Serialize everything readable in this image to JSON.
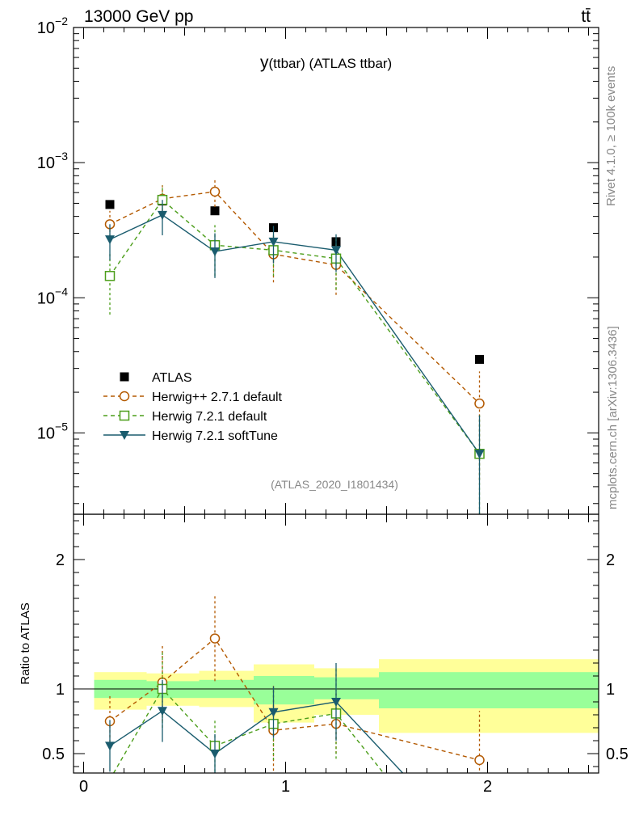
{
  "header": {
    "energy_label": "13000 GeV pp",
    "process_label": "tt̄"
  },
  "side": {
    "rivet_label": "Rivet 4.1.0, ≥ 100k events",
    "mcplots_label": "mcplots.cern.ch [arXiv:1306.3436]"
  },
  "chart_data": [
    {
      "type": "scatter",
      "title": "y(ttbar) (ATLAS ttbar)",
      "title_main": "y",
      "title_rest": "(ttbar) (ATLAS ttbar)",
      "analysis_tag": "(ATLAS_2020_I1801434)",
      "yscale": "log",
      "ylim": [
        2.5e-06,
        0.01
      ],
      "xlim": [
        -0.05,
        2.55
      ],
      "yticks": [
        {
          "value": 1e-05,
          "base": "10",
          "exp": "−5"
        },
        {
          "value": 0.0001,
          "base": "10",
          "exp": "−4"
        },
        {
          "value": 0.001,
          "base": "10",
          "exp": "−3"
        },
        {
          "value": 0.01,
          "base": "10",
          "exp": "−2"
        }
      ],
      "legend_position": "bottom-left",
      "series": [
        {
          "name": "ATLAS",
          "color": "#000000",
          "marker": "square-filled",
          "line": "none",
          "x": [
            0.13,
            0.39,
            0.65,
            0.94,
            1.25,
            1.96
          ],
          "y": [
            0.00049,
            0.00052,
            0.00044,
            0.00033,
            0.00026,
            3.5e-05
          ],
          "err": [
            0,
            0,
            0,
            0,
            0,
            0
          ]
        },
        {
          "name": "Herwig++ 2.7.1 default",
          "color": "#b35900",
          "marker": "circle-open",
          "line": "dashed",
          "x": [
            0.13,
            0.39,
            0.65,
            0.94,
            1.25,
            1.96
          ],
          "y": [
            0.00035,
            0.00054,
            0.00061,
            0.00021,
            0.000175,
            1.65e-05
          ],
          "err": [
            9e-05,
            0.00014,
            0.00014,
            8e-05,
            7e-05,
            1.2e-05
          ]
        },
        {
          "name": "Herwig 7.2.1 default",
          "color": "#4c9e1a",
          "marker": "square-open",
          "line": "dashed",
          "x": [
            0.13,
            0.39,
            0.65,
            0.94,
            1.25,
            1.96
          ],
          "y": [
            0.000145,
            0.00053,
            0.000245,
            0.000225,
            0.000195,
            7e-06
          ],
          "err": [
            7e-05,
            0.00015,
            0.0001,
            8e-05,
            8e-05,
            6.5e-06
          ]
        },
        {
          "name": "Herwig 7.2.1 softTune",
          "color": "#1a5c6e",
          "marker": "triangle-down-filled",
          "line": "solid",
          "x": [
            0.13,
            0.39,
            0.65,
            0.94,
            1.25,
            1.96
          ],
          "y": [
            0.00027,
            0.00041,
            0.00022,
            0.00026,
            0.000225,
            7e-06
          ],
          "err": [
            8e-05,
            0.00012,
            8e-05,
            8e-05,
            7e-05,
            6.5e-06
          ]
        }
      ]
    },
    {
      "type": "scatter",
      "ylabel": "Ratio to ATLAS",
      "xlabel": "",
      "ylim": [
        0.35,
        2.35
      ],
      "xlim": [
        -0.05,
        2.55
      ],
      "xticks": [
        0,
        1,
        2
      ],
      "yticks": [
        0.5,
        1,
        2
      ],
      "reference_line": 1,
      "bands": [
        {
          "x0": 0.0,
          "x1": 0.26,
          "yellow": [
            0.84,
            1.13
          ],
          "green": [
            0.93,
            1.07
          ]
        },
        {
          "x0": 0.26,
          "x1": 0.52,
          "yellow": [
            0.87,
            1.12
          ],
          "green": [
            0.93,
            1.06
          ]
        },
        {
          "x0": 0.52,
          "x1": 0.79,
          "yellow": [
            0.86,
            1.14
          ],
          "green": [
            0.93,
            1.07
          ]
        },
        {
          "x0": 0.79,
          "x1": 1.09,
          "yellow": [
            0.74,
            1.19
          ],
          "green": [
            0.88,
            1.1
          ]
        },
        {
          "x0": 1.09,
          "x1": 1.41,
          "yellow": [
            0.8,
            1.16
          ],
          "green": [
            0.92,
            1.09
          ]
        },
        {
          "x0": 1.41,
          "x1": 2.5,
          "yellow": [
            0.66,
            1.23
          ],
          "green": [
            0.85,
            1.13
          ]
        }
      ],
      "series": [
        {
          "name": "Herwig++ 2.7.1 default",
          "color": "#b35900",
          "marker": "circle-open",
          "line": "dashed",
          "x": [
            0.13,
            0.39,
            0.65,
            0.94,
            1.25,
            1.96
          ],
          "y": [
            0.75,
            1.05,
            1.39,
            0.68,
            0.73,
            0.45
          ],
          "err": [
            0.2,
            0.3,
            0.33,
            0.35,
            0.23,
            0.38
          ]
        },
        {
          "name": "Herwig 7.2.1 default",
          "color": "#4c9e1a",
          "marker": "square-open",
          "line": "dashed",
          "x": [
            0.13,
            0.39,
            0.65,
            0.94,
            1.25,
            1.51
          ],
          "y": [
            0.3,
            1.0,
            0.56,
            0.73,
            0.81,
            0.3
          ],
          "err": [
            0,
            0.3,
            0.2,
            0.28,
            0.35,
            0
          ]
        },
        {
          "name": "Herwig 7.2.1 softTune",
          "color": "#1a5c6e",
          "marker": "triangle-down-filled",
          "line": "solid",
          "x": [
            0.13,
            0.39,
            0.65,
            0.94,
            1.25,
            1.61
          ],
          "y": [
            0.56,
            0.83,
            0.5,
            0.82,
            0.9,
            0.3
          ],
          "err": [
            0.2,
            0.24,
            0.15,
            0.2,
            0.3,
            0
          ]
        }
      ]
    }
  ]
}
